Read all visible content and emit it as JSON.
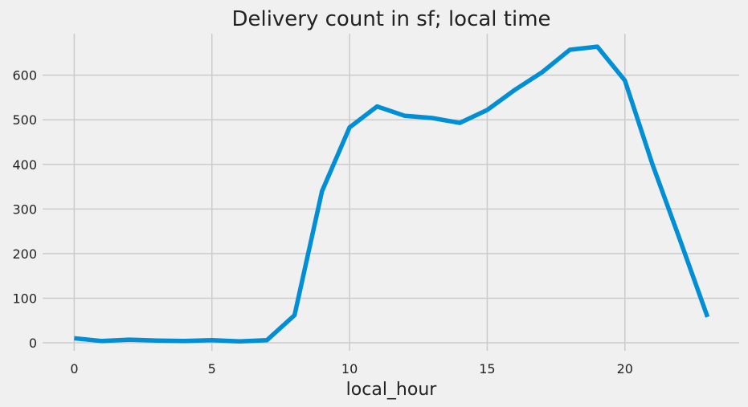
{
  "chart_data": {
    "type": "line",
    "title": "Delivery count in sf; local time",
    "xlabel": "local_hour",
    "ylabel": "",
    "x": [
      0,
      1,
      2,
      3,
      4,
      5,
      6,
      7,
      8,
      9,
      10,
      11,
      12,
      13,
      14,
      15,
      16,
      17,
      18,
      19,
      20,
      21,
      22,
      23
    ],
    "series": [
      {
        "name": "",
        "values": [
          10,
          4,
          7,
          5,
          4,
          6,
          3,
          6,
          62,
          340,
          483,
          530,
          509,
          504,
          493,
          522,
          567,
          607,
          657,
          664,
          588,
          400,
          231,
          58
        ]
      }
    ],
    "xlim": [
      -1.15,
      24.15
    ],
    "ylim": [
      -18,
      693
    ],
    "xticks": [
      0,
      5,
      10,
      15,
      20
    ],
    "yticks": [
      0,
      100,
      200,
      300,
      400,
      500,
      600
    ],
    "grid": true,
    "line_color": "#008fd5"
  }
}
